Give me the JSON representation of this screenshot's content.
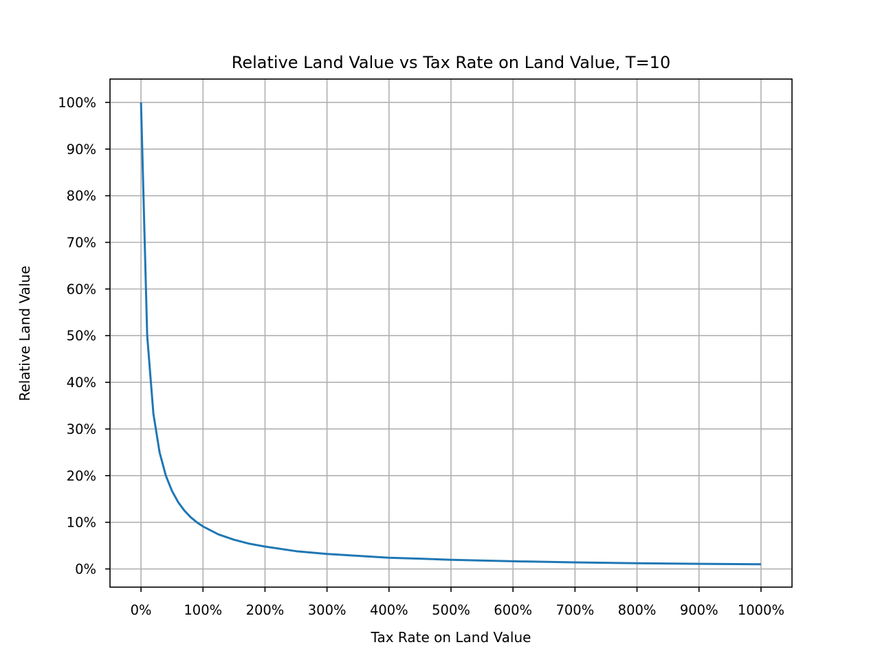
{
  "chart_data": {
    "type": "line",
    "title": "Relative Land Value vs Tax Rate on Land Value, T=10",
    "xlabel": "Tax Rate on Land Value",
    "ylabel": "Relative Land Value",
    "xlim": [
      -0.5,
      10.5
    ],
    "ylim": [
      -0.039,
      1.05
    ],
    "grid": true,
    "x_ticks": [
      {
        "value": 0,
        "label": "0%"
      },
      {
        "value": 1,
        "label": "100%"
      },
      {
        "value": 2,
        "label": "200%"
      },
      {
        "value": 3,
        "label": "300%"
      },
      {
        "value": 4,
        "label": "400%"
      },
      {
        "value": 5,
        "label": "500%"
      },
      {
        "value": 6,
        "label": "600%"
      },
      {
        "value": 7,
        "label": "700%"
      },
      {
        "value": 8,
        "label": "800%"
      },
      {
        "value": 9,
        "label": "900%"
      },
      {
        "value": 10,
        "label": "1000%"
      }
    ],
    "y_ticks": [
      {
        "value": 0,
        "label": "0%"
      },
      {
        "value": 0.1,
        "label": "10%"
      },
      {
        "value": 0.2,
        "label": "20%"
      },
      {
        "value": 0.3,
        "label": "30%"
      },
      {
        "value": 0.4,
        "label": "40%"
      },
      {
        "value": 0.5,
        "label": "50%"
      },
      {
        "value": 0.6,
        "label": "60%"
      },
      {
        "value": 0.7,
        "label": "70%"
      },
      {
        "value": 0.8,
        "label": "80%"
      },
      {
        "value": 0.9,
        "label": "90%"
      },
      {
        "value": 1.0,
        "label": "100%"
      }
    ],
    "series": [
      {
        "color": "#1f77b4",
        "x": [
          0,
          0.1,
          0.2,
          0.3,
          0.4,
          0.5,
          0.6,
          0.7,
          0.8,
          0.9,
          1.0,
          1.25,
          1.5,
          1.75,
          2.0,
          2.5,
          3.0,
          3.5,
          4.0,
          4.5,
          5.0,
          6.0,
          7.0,
          8.0,
          9.0,
          10.0
        ],
        "y": [
          1.0,
          0.5,
          0.333,
          0.25,
          0.2,
          0.167,
          0.143,
          0.125,
          0.111,
          0.1,
          0.091,
          0.074,
          0.0625,
          0.054,
          0.048,
          0.038,
          0.032,
          0.028,
          0.024,
          0.022,
          0.0196,
          0.0164,
          0.0141,
          0.0123,
          0.011,
          0.0099
        ]
      }
    ]
  }
}
